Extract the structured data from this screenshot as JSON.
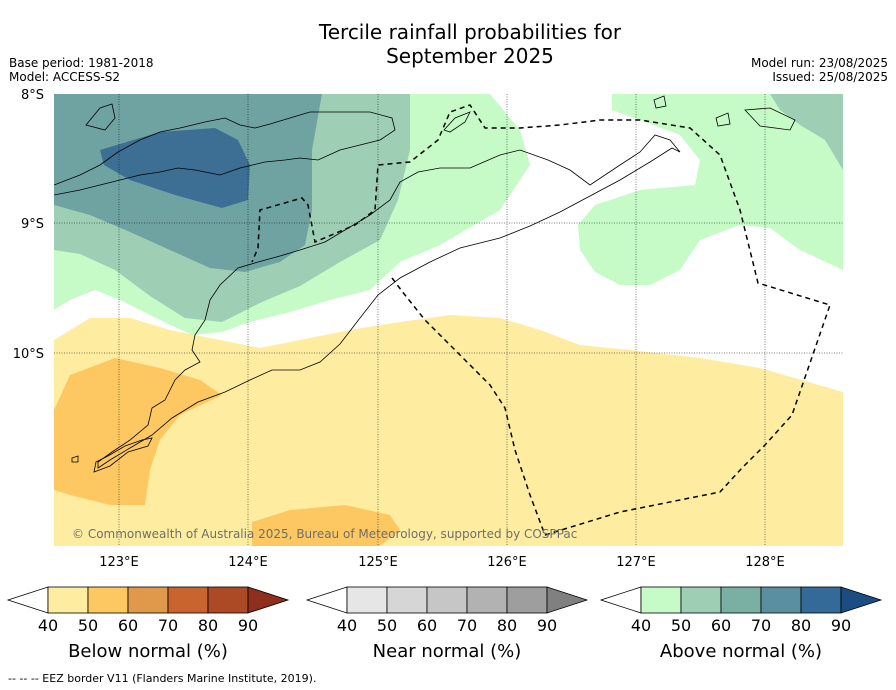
{
  "title_line1": "Tercile rainfall probabilities for",
  "title_line2": "September 2025",
  "base_period": "Base period: 1981-2018",
  "model": "Model: ACCESS-S2",
  "model_run": "Model run: 23/08/2025",
  "issued": "Issued: 25/08/2025",
  "copyright": "© Commonwealth of Australia 2025, Bureau of Meteorology, supported by COSPPac",
  "footnote": "--  --  -- EEZ border V11 (Flanders Marine Institute, 2019).",
  "lat_labels": [
    "8°S",
    "9°S",
    "10°S"
  ],
  "lon_labels": [
    "123°E",
    "124°E",
    "125°E",
    "126°E",
    "127°E",
    "128°E"
  ],
  "colorbars": [
    {
      "label": "Below normal (%)",
      "ticks": [
        "40",
        "50",
        "60",
        "70",
        "80",
        "90"
      ],
      "colors": [
        "#ffffff",
        "#feeda0",
        "#fdc862",
        "#e0984a",
        "#c9642f",
        "#ad4a26",
        "#8f2e1d"
      ]
    },
    {
      "label": "Near normal (%)",
      "ticks": [
        "40",
        "50",
        "60",
        "70",
        "80",
        "90"
      ],
      "colors": [
        "#ffffff",
        "#e6e6e6",
        "#d6d6d6",
        "#c6c6c6",
        "#b2b2b2",
        "#9e9e9e",
        "#808080"
      ]
    },
    {
      "label": "Above normal (%)",
      "ticks": [
        "40",
        "50",
        "60",
        "70",
        "80",
        "90"
      ],
      "colors": [
        "#ffffff",
        "#c6fbc8",
        "#9ecfb4",
        "#7ab0a4",
        "#5a8fa0",
        "#336a98",
        "#1c4d82"
      ]
    }
  ]
}
